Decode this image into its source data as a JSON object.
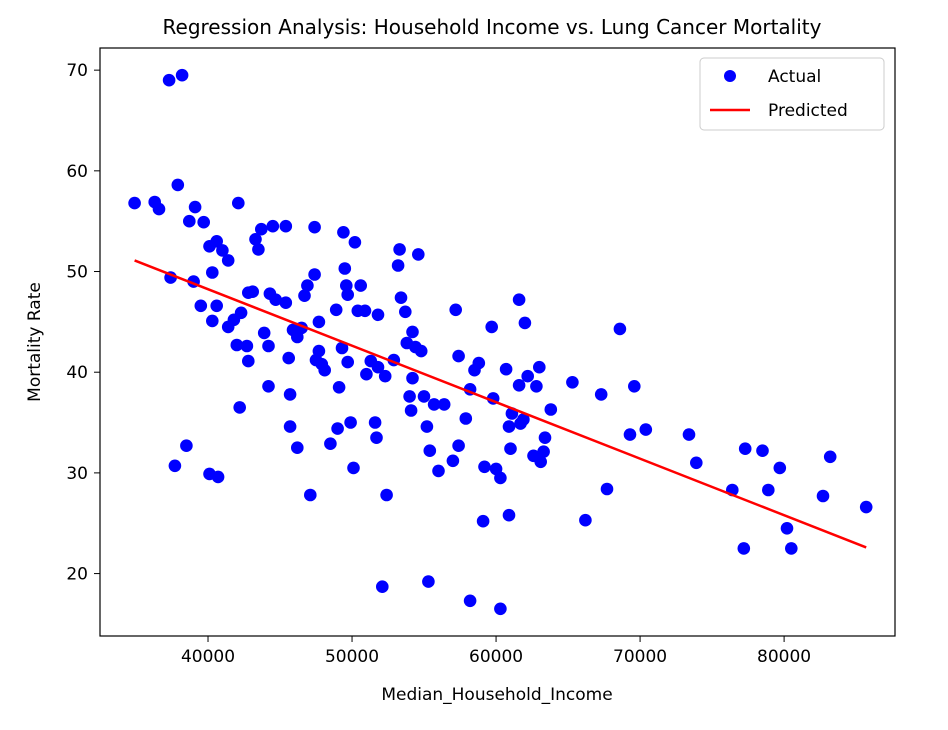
{
  "chart_data": {
    "type": "scatter",
    "title": "Regression Analysis: Household Income vs. Lung Cancer Mortality",
    "xlabel": "Median_Household_Income",
    "ylabel": "Mortality Rate",
    "xlim": [
      32500,
      87700
    ],
    "ylim": [
      13.8,
      72.2
    ],
    "xticks": [
      40000,
      50000,
      60000,
      70000,
      80000
    ],
    "yticks": [
      20,
      30,
      40,
      50,
      60,
      70
    ],
    "grid": false,
    "legend_position": "top-right",
    "colors": {
      "actual": "#0000ff",
      "predicted": "#ff0000"
    },
    "series": [
      {
        "name": "Actual",
        "type": "scatter",
        "points": [
          [
            34900,
            56.8
          ],
          [
            36300,
            56.9
          ],
          [
            36600,
            56.2
          ],
          [
            37300,
            69.0
          ],
          [
            38200,
            69.5
          ],
          [
            37900,
            58.6
          ],
          [
            37400,
            49.4
          ],
          [
            37700,
            30.7
          ],
          [
            38500,
            32.7
          ],
          [
            38700,
            55.0
          ],
          [
            39000,
            49.0
          ],
          [
            39100,
            56.4
          ],
          [
            39500,
            46.6
          ],
          [
            39700,
            54.9
          ],
          [
            40100,
            52.5
          ],
          [
            40100,
            29.9
          ],
          [
            40300,
            49.9
          ],
          [
            40300,
            45.1
          ],
          [
            40600,
            53.0
          ],
          [
            40600,
            46.6
          ],
          [
            40700,
            29.6
          ],
          [
            41000,
            52.1
          ],
          [
            41400,
            51.1
          ],
          [
            41400,
            44.5
          ],
          [
            41800,
            45.2
          ],
          [
            42000,
            42.7
          ],
          [
            42100,
            56.8
          ],
          [
            42200,
            36.5
          ],
          [
            42300,
            45.9
          ],
          [
            42700,
            42.6
          ],
          [
            42800,
            47.9
          ],
          [
            42800,
            41.1
          ],
          [
            43100,
            48.0
          ],
          [
            43300,
            53.2
          ],
          [
            43500,
            52.2
          ],
          [
            43700,
            54.2
          ],
          [
            43900,
            43.9
          ],
          [
            44200,
            38.6
          ],
          [
            44200,
            42.6
          ],
          [
            44300,
            47.8
          ],
          [
            44500,
            54.5
          ],
          [
            44700,
            47.2
          ],
          [
            45400,
            54.5
          ],
          [
            45400,
            46.9
          ],
          [
            45600,
            41.4
          ],
          [
            45700,
            37.8
          ],
          [
            45700,
            34.6
          ],
          [
            45900,
            44.2
          ],
          [
            46200,
            32.5
          ],
          [
            46200,
            43.5
          ],
          [
            46500,
            44.4
          ],
          [
            46700,
            47.6
          ],
          [
            46900,
            48.6
          ],
          [
            47100,
            27.8
          ],
          [
            47400,
            49.7
          ],
          [
            47400,
            54.4
          ],
          [
            47500,
            41.2
          ],
          [
            47700,
            45.0
          ],
          [
            47700,
            42.1
          ],
          [
            47900,
            40.8
          ],
          [
            48100,
            40.2
          ],
          [
            48500,
            32.9
          ],
          [
            48900,
            46.2
          ],
          [
            49000,
            34.4
          ],
          [
            49100,
            38.5
          ],
          [
            49300,
            42.4
          ],
          [
            49400,
            53.9
          ],
          [
            49500,
            50.3
          ],
          [
            49600,
            48.6
          ],
          [
            49700,
            41.0
          ],
          [
            49700,
            47.7
          ],
          [
            49900,
            35.0
          ],
          [
            50100,
            30.5
          ],
          [
            50200,
            52.9
          ],
          [
            50400,
            46.1
          ],
          [
            50600,
            48.6
          ],
          [
            50900,
            46.1
          ],
          [
            51000,
            39.8
          ],
          [
            51300,
            41.1
          ],
          [
            51600,
            35.0
          ],
          [
            51700,
            33.5
          ],
          [
            51800,
            40.5
          ],
          [
            51800,
            45.7
          ],
          [
            52100,
            18.7
          ],
          [
            52300,
            39.6
          ],
          [
            52400,
            27.8
          ],
          [
            52900,
            41.2
          ],
          [
            53200,
            50.6
          ],
          [
            53300,
            52.2
          ],
          [
            53400,
            47.4
          ],
          [
            53700,
            46.0
          ],
          [
            53800,
            42.9
          ],
          [
            54000,
            37.6
          ],
          [
            54100,
            36.2
          ],
          [
            54200,
            44.0
          ],
          [
            54200,
            39.4
          ],
          [
            54400,
            42.5
          ],
          [
            54600,
            51.7
          ],
          [
            54800,
            42.1
          ],
          [
            55000,
            37.6
          ],
          [
            55200,
            34.6
          ],
          [
            55300,
            19.2
          ],
          [
            55400,
            32.2
          ],
          [
            55700,
            36.8
          ],
          [
            56000,
            30.2
          ],
          [
            56400,
            36.8
          ],
          [
            57000,
            31.2
          ],
          [
            57200,
            46.2
          ],
          [
            57400,
            41.6
          ],
          [
            57400,
            32.7
          ],
          [
            57900,
            35.4
          ],
          [
            58200,
            38.3
          ],
          [
            58200,
            17.3
          ],
          [
            58500,
            40.2
          ],
          [
            58800,
            40.9
          ],
          [
            59100,
            25.2
          ],
          [
            59200,
            30.6
          ],
          [
            59700,
            44.5
          ],
          [
            59800,
            37.4
          ],
          [
            60000,
            30.4
          ],
          [
            60300,
            29.5
          ],
          [
            60300,
            16.5
          ],
          [
            60700,
            40.3
          ],
          [
            60900,
            34.6
          ],
          [
            60900,
            25.8
          ],
          [
            61000,
            32.4
          ],
          [
            61100,
            35.9
          ],
          [
            61600,
            47.2
          ],
          [
            61600,
            38.7
          ],
          [
            61700,
            34.9
          ],
          [
            61900,
            35.3
          ],
          [
            62000,
            44.9
          ],
          [
            62200,
            39.6
          ],
          [
            62600,
            31.7
          ],
          [
            62800,
            38.6
          ],
          [
            63000,
            40.5
          ],
          [
            63100,
            31.1
          ],
          [
            63300,
            32.1
          ],
          [
            63400,
            33.5
          ],
          [
            63800,
            36.3
          ],
          [
            65300,
            39.0
          ],
          [
            66200,
            25.3
          ],
          [
            67300,
            37.8
          ],
          [
            67700,
            28.4
          ],
          [
            68600,
            44.3
          ],
          [
            69300,
            33.8
          ],
          [
            69600,
            38.6
          ],
          [
            70400,
            34.3
          ],
          [
            73400,
            33.8
          ],
          [
            73900,
            31.0
          ],
          [
            76400,
            28.3
          ],
          [
            77200,
            22.5
          ],
          [
            77300,
            32.4
          ],
          [
            78500,
            32.2
          ],
          [
            78900,
            28.3
          ],
          [
            79700,
            30.5
          ],
          [
            80200,
            24.5
          ],
          [
            80500,
            22.5
          ],
          [
            82700,
            27.7
          ],
          [
            83200,
            31.6
          ],
          [
            85700,
            26.6
          ]
        ]
      },
      {
        "name": "Predicted",
        "type": "line",
        "points": [
          [
            34900,
            51.1
          ],
          [
            85700,
            22.6
          ]
        ]
      }
    ]
  }
}
